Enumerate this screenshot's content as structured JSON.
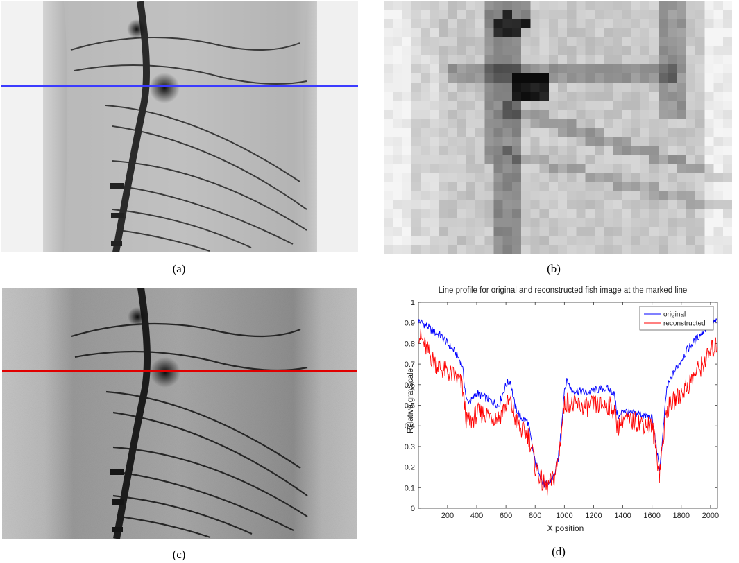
{
  "figure": {
    "captions": {
      "a": "(a)",
      "b": "(b)",
      "c": "(c)",
      "d": "(d)"
    }
  },
  "colors": {
    "marker_line_a": "#3b3bff",
    "marker_line_c": "#e00000",
    "series_original": "#0000ff",
    "series_reconstructed": "#ff0000"
  },
  "chart_data": {
    "type": "line",
    "title": "Line profile for original and reconstructed fish image at the marked line",
    "xlabel": "X position",
    "ylabel": "Relative grayscale",
    "xlim": [
      1,
      2048
    ],
    "ylim": [
      0,
      1
    ],
    "xticks": [
      200,
      400,
      600,
      800,
      1000,
      1200,
      1400,
      1600,
      1800,
      2000
    ],
    "yticks": [
      0,
      0.1,
      0.2,
      0.3,
      0.4,
      0.5,
      0.6,
      0.7,
      0.8,
      0.9,
      1
    ],
    "legend_position": "top-right",
    "series": [
      {
        "name": "original",
        "color": "#0000ff",
        "x": [
          1,
          50,
          100,
          150,
          200,
          250,
          300,
          330,
          360,
          400,
          450,
          500,
          550,
          600,
          630,
          660,
          700,
          750,
          780,
          800,
          830,
          850,
          880,
          900,
          930,
          960,
          980,
          1000,
          1020,
          1050,
          1100,
          1150,
          1200,
          1250,
          1300,
          1340,
          1360,
          1380,
          1400,
          1450,
          1500,
          1550,
          1600,
          1630,
          1650,
          1670,
          1700,
          1750,
          1800,
          1850,
          1900,
          1950,
          2000,
          2048
        ],
        "y": [
          0.91,
          0.89,
          0.86,
          0.84,
          0.8,
          0.76,
          0.7,
          0.52,
          0.52,
          0.56,
          0.54,
          0.52,
          0.5,
          0.6,
          0.62,
          0.5,
          0.44,
          0.42,
          0.3,
          0.22,
          0.18,
          0.12,
          0.11,
          0.13,
          0.16,
          0.25,
          0.4,
          0.58,
          0.62,
          0.57,
          0.57,
          0.56,
          0.57,
          0.58,
          0.58,
          0.56,
          0.46,
          0.44,
          0.48,
          0.46,
          0.46,
          0.45,
          0.44,
          0.3,
          0.18,
          0.32,
          0.58,
          0.66,
          0.72,
          0.78,
          0.82,
          0.86,
          0.9,
          0.91
        ]
      },
      {
        "name": "reconstructed",
        "color": "#ff0000",
        "x": [
          1,
          50,
          100,
          150,
          200,
          250,
          300,
          330,
          360,
          400,
          450,
          500,
          550,
          600,
          630,
          660,
          700,
          750,
          780,
          800,
          830,
          850,
          880,
          900,
          930,
          960,
          980,
          1000,
          1020,
          1050,
          1100,
          1150,
          1200,
          1250,
          1300,
          1340,
          1360,
          1380,
          1400,
          1450,
          1500,
          1550,
          1600,
          1630,
          1650,
          1670,
          1700,
          1750,
          1800,
          1850,
          1900,
          1950,
          2000,
          2048
        ],
        "y": [
          0.85,
          0.78,
          0.72,
          0.68,
          0.66,
          0.64,
          0.6,
          0.42,
          0.42,
          0.46,
          0.46,
          0.45,
          0.44,
          0.5,
          0.52,
          0.44,
          0.38,
          0.36,
          0.28,
          0.2,
          0.16,
          0.12,
          0.1,
          0.12,
          0.15,
          0.24,
          0.38,
          0.5,
          0.52,
          0.5,
          0.5,
          0.49,
          0.5,
          0.5,
          0.5,
          0.48,
          0.4,
          0.4,
          0.44,
          0.42,
          0.42,
          0.41,
          0.4,
          0.28,
          0.16,
          0.3,
          0.48,
          0.52,
          0.56,
          0.6,
          0.66,
          0.7,
          0.76,
          0.8
        ]
      }
    ]
  }
}
